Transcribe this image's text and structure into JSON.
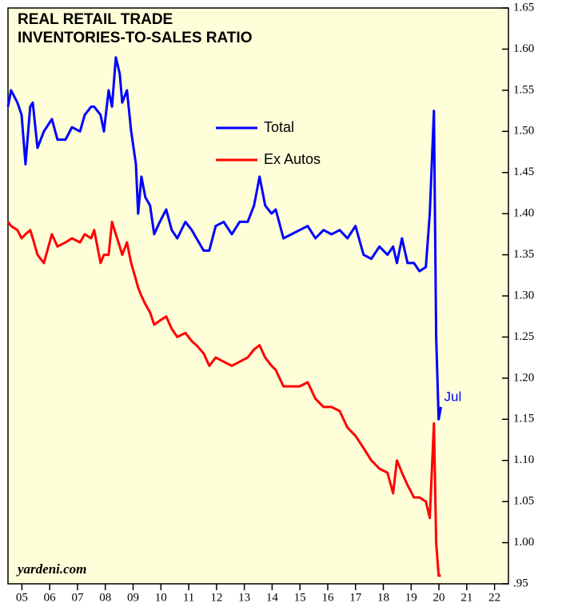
{
  "chart_data": {
    "type": "line",
    "title": "REAL RETAIL TRADE",
    "subtitle": "INVENTORIES-TO-SALES RATIO",
    "watermark": "yardeni.com",
    "annotation": "Jul",
    "x": [
      2005.0,
      2005.11,
      2005.34,
      2005.49,
      2005.63,
      2005.8,
      2005.89,
      2006.06,
      2006.29,
      2006.58,
      2006.78,
      2007.07,
      2007.3,
      2007.59,
      2007.76,
      2007.99,
      2008.1,
      2008.33,
      2008.45,
      2008.62,
      2008.74,
      2008.88,
      2009.02,
      2009.11,
      2009.28,
      2009.43,
      2009.6,
      2009.68,
      2009.8,
      2009.94,
      2010.11,
      2010.26,
      2010.46,
      2010.69,
      2010.89,
      2011.09,
      2011.38,
      2011.61,
      2011.78,
      2012.04,
      2012.24,
      2012.47,
      2012.76,
      2013.05,
      2013.33,
      2013.62,
      2013.85,
      2014.05,
      2014.25,
      2014.48,
      2014.63,
      2014.91,
      2015.2,
      2015.49,
      2015.78,
      2016.06,
      2016.35,
      2016.64,
      2016.93,
      2017.21,
      2017.5,
      2017.79,
      2018.07,
      2018.36,
      2018.65,
      2018.85,
      2018.99,
      2019.17,
      2019.37,
      2019.6,
      2019.8,
      2020.03,
      2020.17,
      2020.32,
      2020.4,
      2020.49,
      2020.57
    ],
    "series": [
      {
        "name": "Total",
        "color": "#0000ff",
        "values": [
          1.53,
          1.55,
          1.535,
          1.52,
          1.46,
          1.53,
          1.535,
          1.48,
          1.5,
          1.515,
          1.49,
          1.49,
          1.505,
          1.5,
          1.52,
          1.53,
          1.53,
          1.52,
          1.5,
          1.55,
          1.53,
          1.59,
          1.57,
          1.535,
          1.55,
          1.5,
          1.46,
          1.4,
          1.445,
          1.42,
          1.41,
          1.375,
          1.39,
          1.405,
          1.38,
          1.37,
          1.39,
          1.38,
          1.37,
          1.355,
          1.355,
          1.385,
          1.39,
          1.375,
          1.39,
          1.39,
          1.41,
          1.445,
          1.41,
          1.4,
          1.405,
          1.37,
          1.375,
          1.38,
          1.385,
          1.37,
          1.38,
          1.375,
          1.38,
          1.37,
          1.385,
          1.35,
          1.345,
          1.36,
          1.35,
          1.36,
          1.34,
          1.37,
          1.34,
          1.34,
          1.33,
          1.335,
          1.4,
          1.525,
          1.25,
          1.15,
          1.165
        ]
      },
      {
        "name": "Ex Autos",
        "color": "#ff0000",
        "values": [
          1.39,
          1.385,
          1.38,
          1.37,
          1.375,
          1.38,
          1.37,
          1.35,
          1.34,
          1.375,
          1.36,
          1.365,
          1.37,
          1.365,
          1.375,
          1.37,
          1.38,
          1.34,
          1.35,
          1.35,
          1.39,
          1.375,
          1.36,
          1.35,
          1.365,
          1.34,
          1.32,
          1.31,
          1.3,
          1.29,
          1.28,
          1.265,
          1.27,
          1.275,
          1.26,
          1.25,
          1.255,
          1.245,
          1.24,
          1.23,
          1.215,
          1.225,
          1.22,
          1.215,
          1.22,
          1.225,
          1.235,
          1.24,
          1.225,
          1.215,
          1.21,
          1.19,
          1.19,
          1.19,
          1.195,
          1.175,
          1.165,
          1.165,
          1.16,
          1.14,
          1.13,
          1.115,
          1.1,
          1.09,
          1.085,
          1.06,
          1.1,
          1.085,
          1.07,
          1.055,
          1.055,
          1.05,
          1.03,
          1.145,
          1.0,
          0.96,
          0.96
        ]
      }
    ],
    "xlim": [
      2005,
      2023
    ],
    "xticks": [
      {
        "value": 2005.5,
        "label": "05"
      },
      {
        "value": 2006.5,
        "label": "06"
      },
      {
        "value": 2007.5,
        "label": "07"
      },
      {
        "value": 2008.5,
        "label": "08"
      },
      {
        "value": 2009.5,
        "label": "09"
      },
      {
        "value": 2010.5,
        "label": "10"
      },
      {
        "value": 2011.5,
        "label": "11"
      },
      {
        "value": 2012.5,
        "label": "12"
      },
      {
        "value": 2013.5,
        "label": "13"
      },
      {
        "value": 2014.5,
        "label": "14"
      },
      {
        "value": 2015.5,
        "label": "15"
      },
      {
        "value": 2016.5,
        "label": "16"
      },
      {
        "value": 2017.5,
        "label": "17"
      },
      {
        "value": 2018.5,
        "label": "18"
      },
      {
        "value": 2019.5,
        "label": "19"
      },
      {
        "value": 2020.5,
        "label": "20"
      },
      {
        "value": 2021.5,
        "label": "21"
      },
      {
        "value": 2022.5,
        "label": "22"
      }
    ],
    "ylim": [
      0.95,
      1.65
    ],
    "yticks": [
      {
        "value": 0.95,
        "label": ".95"
      },
      {
        "value": 1.0,
        "label": "1.00"
      },
      {
        "value": 1.05,
        "label": "1.05"
      },
      {
        "value": 1.1,
        "label": "1.10"
      },
      {
        "value": 1.15,
        "label": "1.15"
      },
      {
        "value": 1.2,
        "label": "1.20"
      },
      {
        "value": 1.25,
        "label": "1.25"
      },
      {
        "value": 1.3,
        "label": "1.30"
      },
      {
        "value": 1.35,
        "label": "1.35"
      },
      {
        "value": 1.4,
        "label": "1.40"
      },
      {
        "value": 1.45,
        "label": "1.45"
      },
      {
        "value": 1.5,
        "label": "1.50"
      },
      {
        "value": 1.55,
        "label": "1.55"
      },
      {
        "value": 1.6,
        "label": "1.60"
      },
      {
        "value": 1.65,
        "label": "1.65"
      }
    ]
  }
}
